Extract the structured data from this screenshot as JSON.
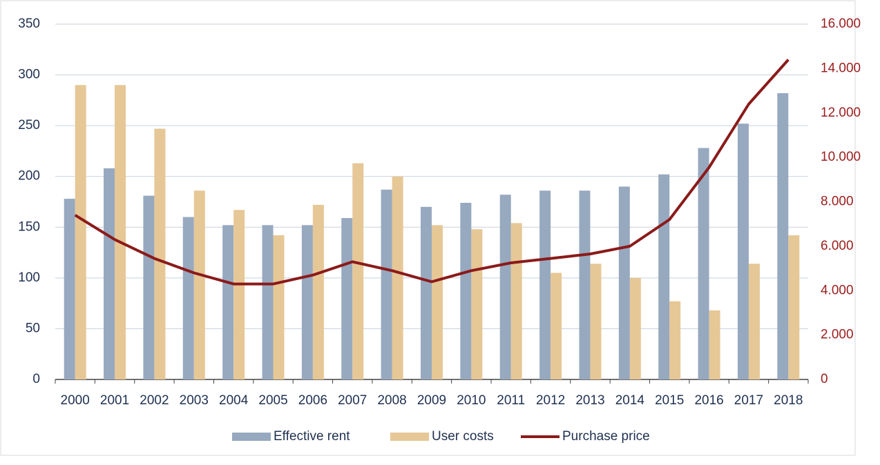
{
  "chart_data": {
    "type": "bar-line",
    "categories": [
      "2000",
      "2001",
      "2002",
      "2003",
      "2004",
      "2005",
      "2006",
      "2007",
      "2008",
      "2009",
      "2010",
      "2011",
      "2012",
      "2013",
      "2014",
      "2015",
      "2016",
      "2017",
      "2018"
    ],
    "series": [
      {
        "name": "Effective rent",
        "color": "#97a9bf",
        "type": "bar",
        "values": [
          178,
          208,
          181,
          160,
          152,
          152,
          152,
          159,
          187,
          170,
          174,
          182,
          186,
          186,
          190,
          202,
          228,
          252,
          282
        ]
      },
      {
        "name": "User costs",
        "color": "#e6c796",
        "type": "bar",
        "values": [
          290,
          290,
          247,
          186,
          167,
          142,
          172,
          213,
          200,
          152,
          148,
          154,
          105,
          114,
          100,
          77,
          68,
          114,
          142
        ]
      },
      {
        "name": "Purchase price",
        "color": "#8b1a1a",
        "type": "line",
        "axis": "y2",
        "values": [
          7400,
          6300,
          5450,
          4800,
          4300,
          4300,
          4700,
          5300,
          4900,
          4400,
          4900,
          5250,
          5450,
          5650,
          6000,
          7200,
          9550,
          12400,
          14400
        ]
      }
    ],
    "ylim": [
      0,
      350
    ],
    "yticks": [
      0,
      50,
      100,
      150,
      200,
      250,
      300,
      350
    ],
    "y2lim": [
      0,
      16000
    ],
    "y2ticks": [
      {
        "value": 0,
        "label": "0"
      },
      {
        "value": 2000,
        "label": "2.000"
      },
      {
        "value": 4000,
        "label": "4.000"
      },
      {
        "value": 6000,
        "label": "6.000"
      },
      {
        "value": 8000,
        "label": "8.000"
      },
      {
        "value": 10000,
        "label": "10.000"
      },
      {
        "value": 12000,
        "label": "12.000"
      },
      {
        "value": 14000,
        "label": "14.000"
      },
      {
        "value": 16000,
        "label": "16.000"
      }
    ],
    "grid": true,
    "legend": "bottom"
  }
}
